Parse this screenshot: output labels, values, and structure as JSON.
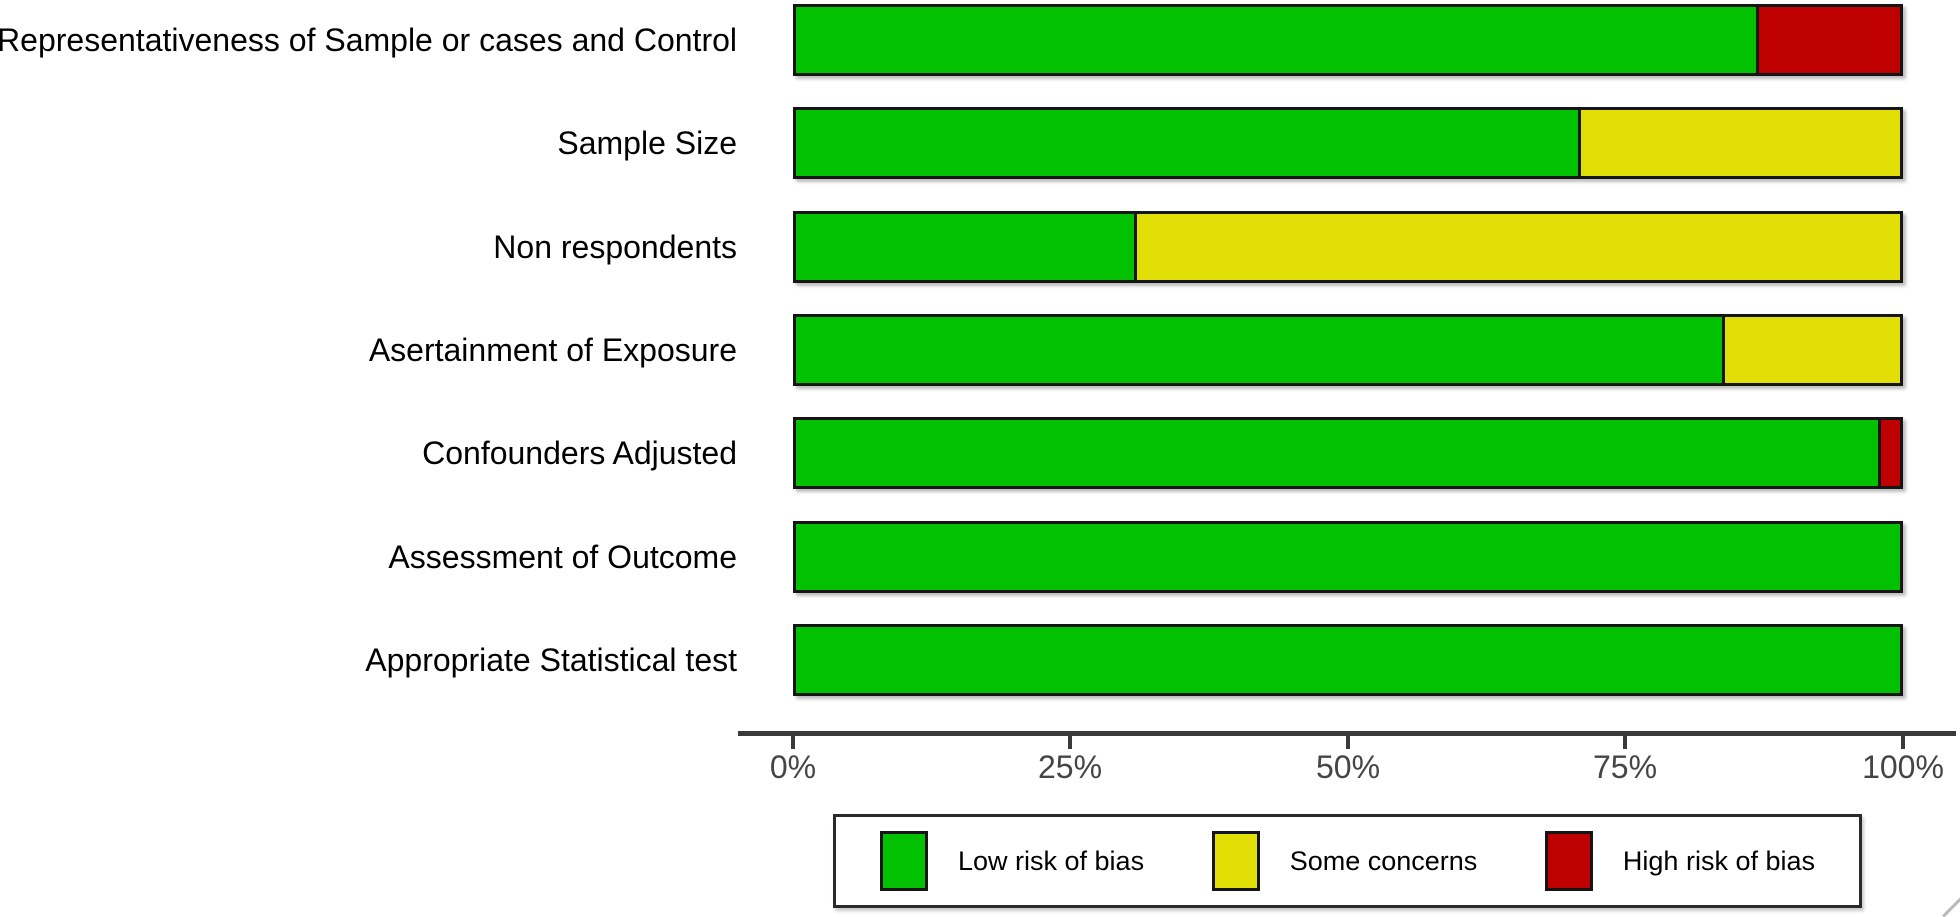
{
  "chart_data": {
    "type": "bar",
    "orientation": "horizontal",
    "stacked": true,
    "unit": "percent",
    "title": "",
    "categories": [
      "Representativeness of Sample or cases and Control",
      "Sample Size",
      "Non respondents",
      "Asertainment of Exposure",
      "Confounders Adjusted",
      "Assessment of Outcome",
      "Appropriate Statistical test"
    ],
    "series": [
      {
        "name": "Low risk of bias",
        "color": "#02C100",
        "values": [
          87,
          71,
          31,
          84,
          98,
          100,
          100
        ]
      },
      {
        "name": "Some concerns",
        "color": "#E2DF07",
        "values": [
          0,
          29,
          69,
          16,
          0,
          0,
          0
        ]
      },
      {
        "name": "High risk of bias",
        "color": "#BF0000",
        "values": [
          13,
          0,
          0,
          0,
          2,
          0,
          0
        ]
      }
    ],
    "x_axis": {
      "range": [
        0,
        100
      ],
      "tick_labels": [
        "0%",
        "25%",
        "50%",
        "75%",
        "100%"
      ]
    },
    "legend": {
      "position": "bottom"
    },
    "grid": false
  },
  "colors": {
    "background": "#ffffff",
    "bar_border": "#151515",
    "axis": "#3a3a3a",
    "tick_text": "#454545",
    "label_text": "#000000",
    "legend_border": "#2a2a2a"
  }
}
